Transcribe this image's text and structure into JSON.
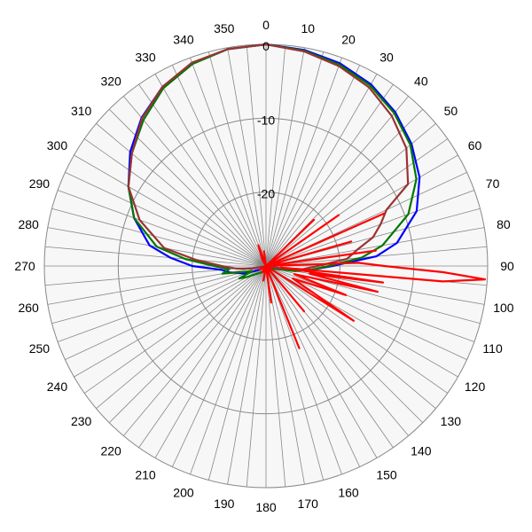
{
  "chart_data": {
    "type": "polar-line",
    "title": "",
    "angle_labels": [
      "0",
      "10",
      "20",
      "30",
      "40",
      "50",
      "60",
      "70",
      "80",
      "90",
      "100",
      "110",
      "120",
      "130",
      "140",
      "150",
      "160",
      "170",
      "180",
      "190",
      "200",
      "210",
      "220",
      "230",
      "240",
      "250",
      "260",
      "270",
      "280",
      "290",
      "300",
      "310",
      "320",
      "330",
      "340",
      "350"
    ],
    "angle_step_deg": 10,
    "spoke_step_deg": 5,
    "radial_range_db": [
      -30,
      0
    ],
    "radial_ticks": [
      0,
      -10,
      -20
    ],
    "radial_tick_labels": [
      "0",
      "-10",
      "-20"
    ],
    "grid": true,
    "background_color": "#f7f7f7",
    "series": [
      {
        "color": "#0000ff",
        "points": [
          [
            0,
            0
          ],
          [
            10,
            -0.3
          ],
          [
            20,
            -0.8
          ],
          [
            30,
            -1.6
          ],
          [
            40,
            -2.8
          ],
          [
            50,
            -4.3
          ],
          [
            60,
            -6
          ],
          [
            70,
            -8.3
          ],
          [
            80,
            -12
          ],
          [
            85,
            -15
          ],
          [
            90,
            -21
          ],
          [
            95,
            -24
          ],
          [
            100,
            -27
          ],
          [
            110,
            -30
          ],
          [
            240,
            -29
          ],
          [
            250,
            -27
          ],
          [
            260,
            -25
          ],
          [
            265,
            -24
          ],
          [
            270,
            -20
          ],
          [
            275,
            -17
          ],
          [
            280,
            -14
          ],
          [
            290,
            -11
          ],
          [
            300,
            -8.5
          ],
          [
            310,
            -6
          ],
          [
            320,
            -3.8
          ],
          [
            330,
            -2
          ],
          [
            340,
            -0.8
          ],
          [
            350,
            -0.2
          ],
          [
            360,
            0
          ]
        ]
      },
      {
        "color": "#007700",
        "points": [
          [
            0,
            0
          ],
          [
            10,
            -0.4
          ],
          [
            20,
            -1
          ],
          [
            30,
            -1.8
          ],
          [
            40,
            -3
          ],
          [
            50,
            -4.5
          ],
          [
            60,
            -6.5
          ],
          [
            70,
            -9.5
          ],
          [
            80,
            -14
          ],
          [
            85,
            -17
          ],
          [
            90,
            -21.5
          ],
          [
            95,
            -24
          ],
          [
            100,
            -26
          ],
          [
            110,
            -29
          ],
          [
            240,
            -27
          ],
          [
            245,
            -26
          ],
          [
            250,
            -28
          ],
          [
            255,
            -27
          ],
          [
            260,
            -24
          ],
          [
            265,
            -25
          ],
          [
            270,
            -23
          ],
          [
            275,
            -19
          ],
          [
            280,
            -15
          ],
          [
            290,
            -11
          ],
          [
            300,
            -8.5
          ],
          [
            310,
            -6.3
          ],
          [
            320,
            -4.2
          ],
          [
            330,
            -2.2
          ],
          [
            340,
            -0.9
          ],
          [
            350,
            -0.2
          ],
          [
            360,
            0
          ]
        ]
      },
      {
        "color": "#993333",
        "points": [
          [
            0,
            0
          ],
          [
            10,
            -0.5
          ],
          [
            20,
            -1.2
          ],
          [
            30,
            -2.1
          ],
          [
            40,
            -3.5
          ],
          [
            50,
            -5.2
          ],
          [
            60,
            -7.8
          ],
          [
            65,
            -12
          ],
          [
            70,
            -13.5
          ],
          [
            75,
            -15
          ],
          [
            80,
            -17.5
          ],
          [
            85,
            -19
          ],
          [
            90,
            -23
          ],
          [
            95,
            -25
          ],
          [
            100,
            -28
          ],
          [
            110,
            -30
          ],
          [
            250,
            -30
          ],
          [
            260,
            -28
          ],
          [
            265,
            -26
          ],
          [
            270,
            -24
          ],
          [
            275,
            -20.5
          ],
          [
            280,
            -16
          ],
          [
            290,
            -11.8
          ],
          [
            300,
            -8.5
          ],
          [
            310,
            -6.3
          ],
          [
            320,
            -3.9
          ],
          [
            330,
            -2
          ],
          [
            340,
            -0.7
          ],
          [
            350,
            -0.2
          ],
          [
            360,
            0
          ]
        ]
      },
      {
        "color": "#ff0000",
        "points": [
          [
            40,
            -30
          ],
          [
            46,
            -21
          ],
          [
            50,
            -30
          ],
          [
            55,
            -18
          ],
          [
            60,
            -30
          ],
          [
            66,
            -12.5
          ],
          [
            70,
            -30
          ],
          [
            74,
            -18
          ],
          [
            78,
            -30
          ],
          [
            82,
            -15
          ],
          [
            85,
            -30
          ],
          [
            88,
            -17.5
          ],
          [
            90,
            -14
          ],
          [
            92,
            -6
          ],
          [
            93.5,
            -0.3
          ],
          [
            95,
            -6
          ],
          [
            96,
            -28
          ],
          [
            98,
            -14
          ],
          [
            100,
            -24
          ],
          [
            103,
            -14.5
          ],
          [
            106,
            -26
          ],
          [
            110,
            -18.5
          ],
          [
            115,
            -26
          ],
          [
            122,
            -16
          ],
          [
            128,
            -30
          ],
          [
            140,
            -22
          ],
          [
            150,
            -30
          ],
          [
            158,
            -18
          ],
          [
            164,
            -30
          ],
          [
            172,
            -25
          ],
          [
            180,
            -30
          ],
          [
            190,
            -28
          ],
          [
            200,
            -30
          ],
          [
            210,
            -29
          ],
          [
            230,
            -30
          ],
          [
            240,
            -29
          ],
          [
            270,
            -30
          ],
          [
            300,
            -30
          ],
          [
            330,
            -29
          ],
          [
            340,
            -27
          ],
          [
            345,
            -30
          ],
          [
            352,
            -28
          ],
          [
            360,
            -30
          ]
        ]
      }
    ]
  }
}
